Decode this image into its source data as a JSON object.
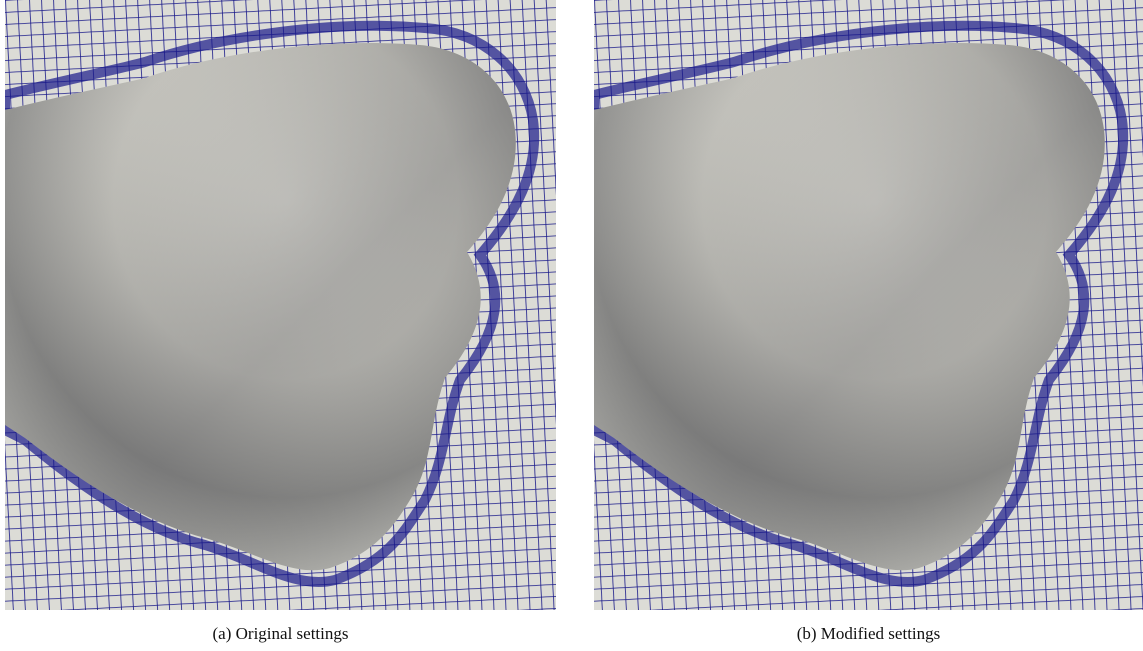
{
  "figures": [
    {
      "caption": "(a) Original settings"
    },
    {
      "caption": "(b) Modified settings"
    }
  ]
}
